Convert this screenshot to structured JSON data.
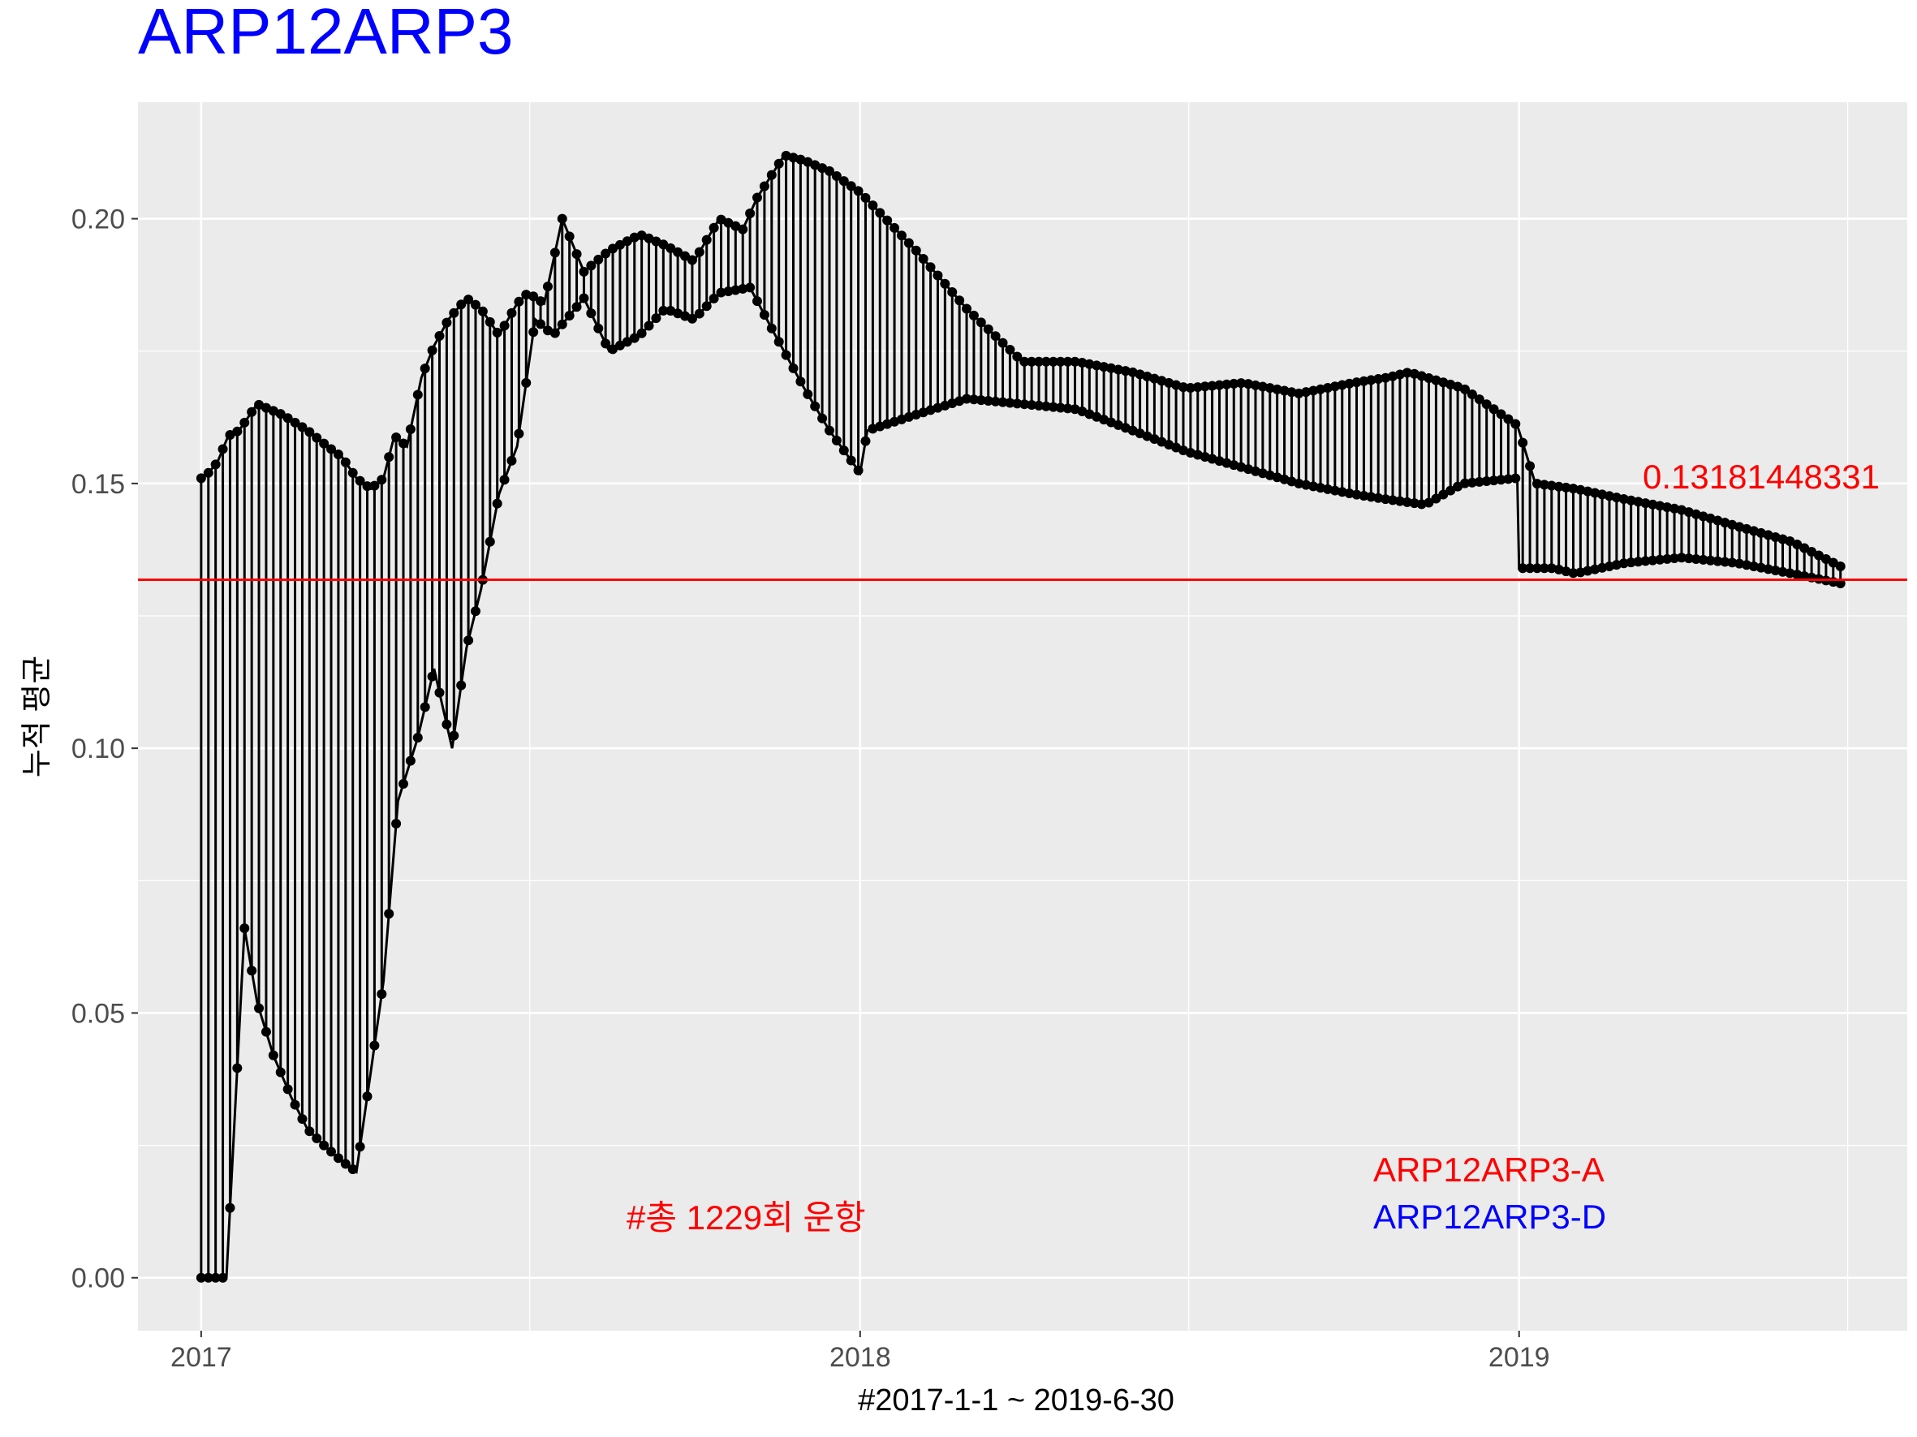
{
  "chart_data": {
    "type": "line",
    "title": "ARP12ARP3",
    "xlabel": "#2017-1-1 ~ 2019-6-30",
    "ylabel": "누적 평균",
    "x_range": [
      "2016-11-27",
      "2019-08-04"
    ],
    "ylim": [
      -0.01,
      0.222
    ],
    "x_ticks": [
      {
        "date": "2017-01-01",
        "label": "2017"
      },
      {
        "date": "2018-01-01",
        "label": "2018"
      },
      {
        "date": "2019-01-01",
        "label": "2019"
      }
    ],
    "x_minor_ticks": [
      "2017-07-02",
      "2018-07-02",
      "2019-07-02"
    ],
    "y_ticks": [
      0.0,
      0.05,
      0.1,
      0.15,
      0.2
    ],
    "y_tick_labels": [
      "0.00",
      "0.05",
      "0.10",
      "0.15",
      "0.20"
    ],
    "grid": true,
    "colors": {
      "panel": "#ebebeb",
      "grid": "#ffffff",
      "series": "#000000",
      "mean_line": "#ff0000",
      "title": "#0000ff",
      "label_a": "#ff0000",
      "label_d": "#0000ff"
    },
    "reference_line": {
      "y": 0.13181448331,
      "label": "0.13181448331"
    },
    "annotations": {
      "count_text": "#총 1229회 운항",
      "label_a": "ARP12ARP3-A",
      "label_d": "ARP12ARP3-D"
    },
    "series": [
      {
        "color": "#000000",
        "description_points": "upper envelope",
        "x": [
          "2017-01-01",
          "2017-01-05",
          "2017-01-10",
          "2017-01-16",
          "2017-01-22",
          "2017-02-01",
          "2017-02-15",
          "2017-03-01",
          "2017-03-12",
          "2017-03-20",
          "2017-03-28",
          "2017-04-05",
          "2017-04-12",
          "2017-04-18",
          "2017-04-25",
          "2017-05-03",
          "2017-05-10",
          "2017-05-18",
          "2017-05-28",
          "2017-06-05",
          "2017-06-15",
          "2017-06-25",
          "2017-07-01",
          "2017-07-10",
          "2017-07-20",
          "2017-08-01",
          "2017-08-15",
          "2017-09-01",
          "2017-09-15",
          "2017-10-01",
          "2017-10-15",
          "2017-10-28",
          "2017-11-05",
          "2017-11-20",
          "2017-12-01",
          "2017-12-15",
          "2018-01-01",
          "2018-02-01",
          "2018-03-01",
          "2018-04-01",
          "2018-05-01",
          "2018-06-01",
          "2018-07-01",
          "2018-08-01",
          "2018-09-01",
          "2018-10-01",
          "2018-10-20",
          "2018-11-01",
          "2018-12-01",
          "2018-12-31",
          "2019-01-10",
          "2019-02-01",
          "2019-03-01",
          "2019-04-01",
          "2019-05-01",
          "2019-06-01",
          "2019-06-30"
        ],
        "y": [
          0.151,
          0.152,
          0.154,
          0.159,
          0.16,
          0.165,
          0.163,
          0.16,
          0.157,
          0.155,
          0.151,
          0.149,
          0.151,
          0.159,
          0.157,
          0.17,
          0.176,
          0.181,
          0.185,
          0.183,
          0.178,
          0.184,
          0.186,
          0.184,
          0.2,
          0.19,
          0.194,
          0.197,
          0.195,
          0.192,
          0.2,
          0.198,
          0.204,
          0.212,
          0.211,
          0.209,
          0.205,
          0.194,
          0.183,
          0.173,
          0.173,
          0.171,
          0.168,
          0.169,
          0.167,
          0.169,
          0.17,
          0.171,
          0.168,
          0.161,
          0.15,
          0.149,
          0.147,
          0.145,
          0.142,
          0.139,
          0.134
        ]
      },
      {
        "color": "#000000",
        "description_points": "lower envelope",
        "x": [
          "2017-01-01",
          "2017-01-05",
          "2017-01-10",
          "2017-01-15",
          "2017-01-25",
          "2017-02-01",
          "2017-02-10",
          "2017-02-20",
          "2017-03-01",
          "2017-03-10",
          "2017-03-20",
          "2017-03-28",
          "2017-04-05",
          "2017-04-12",
          "2017-04-20",
          "2017-05-01",
          "2017-05-10",
          "2017-05-20",
          "2017-05-28",
          "2017-06-05",
          "2017-06-15",
          "2017-06-25",
          "2017-07-05",
          "2017-07-15",
          "2017-08-01",
          "2017-08-15",
          "2017-09-01",
          "2017-09-15",
          "2017-10-01",
          "2017-10-15",
          "2017-11-01",
          "2017-11-15",
          "2017-12-01",
          "2017-12-15",
          "2018-01-01",
          "2018-01-05",
          "2018-02-01",
          "2018-03-01",
          "2018-04-01",
          "2018-05-01",
          "2018-06-01",
          "2018-07-01",
          "2018-08-01",
          "2018-09-01",
          "2018-10-01",
          "2018-10-20",
          "2018-11-10",
          "2018-12-01",
          "2018-12-31",
          "2019-01-01",
          "2019-01-20",
          "2019-02-01",
          "2019-03-01",
          "2019-04-01",
          "2019-05-01",
          "2019-06-01",
          "2019-06-30"
        ],
        "y": [
          0.0,
          0.0,
          0.0,
          0.0,
          0.066,
          0.052,
          0.042,
          0.034,
          0.028,
          0.025,
          0.022,
          0.02,
          0.039,
          0.056,
          0.09,
          0.102,
          0.115,
          0.1,
          0.119,
          0.13,
          0.148,
          0.157,
          0.181,
          0.178,
          0.185,
          0.175,
          0.178,
          0.183,
          0.181,
          0.186,
          0.187,
          0.178,
          0.168,
          0.16,
          0.152,
          0.16,
          0.163,
          0.166,
          0.165,
          0.164,
          0.16,
          0.156,
          0.153,
          0.15,
          0.148,
          0.147,
          0.146,
          0.15,
          0.151,
          0.134,
          0.134,
          0.133,
          0.135,
          0.136,
          0.135,
          0.133,
          0.131
        ]
      }
    ]
  }
}
